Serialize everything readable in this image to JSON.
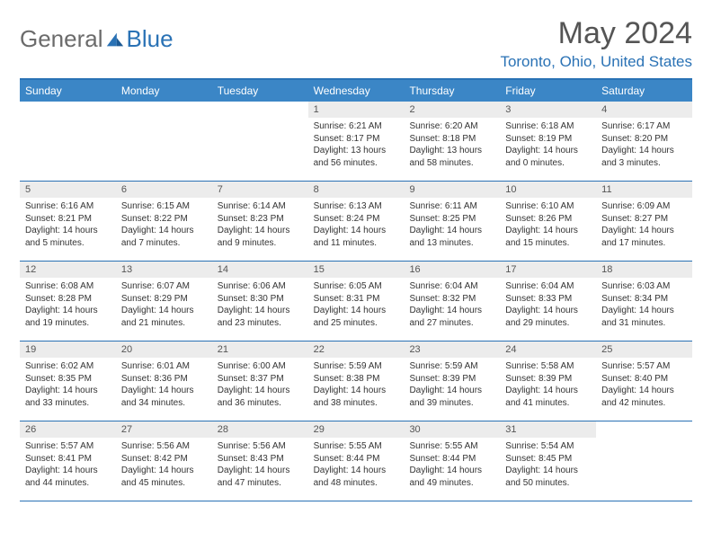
{
  "logo": {
    "general": "General",
    "blue": "Blue"
  },
  "title": "May 2024",
  "location": "Toronto, Ohio, United States",
  "colors": {
    "header_bg": "#3b86c6",
    "header_border": "#2a72b5",
    "daynum_bg": "#ececec",
    "text": "#333333",
    "logo_gray": "#6b6b6b",
    "logo_blue": "#2a72b5"
  },
  "daynames": [
    "Sunday",
    "Monday",
    "Tuesday",
    "Wednesday",
    "Thursday",
    "Friday",
    "Saturday"
  ],
  "weeks": [
    [
      {
        "n": "",
        "sr": "",
        "ss": "",
        "dl": ""
      },
      {
        "n": "",
        "sr": "",
        "ss": "",
        "dl": ""
      },
      {
        "n": "",
        "sr": "",
        "ss": "",
        "dl": ""
      },
      {
        "n": "1",
        "sr": "Sunrise: 6:21 AM",
        "ss": "Sunset: 8:17 PM",
        "dl": "Daylight: 13 hours and 56 minutes."
      },
      {
        "n": "2",
        "sr": "Sunrise: 6:20 AM",
        "ss": "Sunset: 8:18 PM",
        "dl": "Daylight: 13 hours and 58 minutes."
      },
      {
        "n": "3",
        "sr": "Sunrise: 6:18 AM",
        "ss": "Sunset: 8:19 PM",
        "dl": "Daylight: 14 hours and 0 minutes."
      },
      {
        "n": "4",
        "sr": "Sunrise: 6:17 AM",
        "ss": "Sunset: 8:20 PM",
        "dl": "Daylight: 14 hours and 3 minutes."
      }
    ],
    [
      {
        "n": "5",
        "sr": "Sunrise: 6:16 AM",
        "ss": "Sunset: 8:21 PM",
        "dl": "Daylight: 14 hours and 5 minutes."
      },
      {
        "n": "6",
        "sr": "Sunrise: 6:15 AM",
        "ss": "Sunset: 8:22 PM",
        "dl": "Daylight: 14 hours and 7 minutes."
      },
      {
        "n": "7",
        "sr": "Sunrise: 6:14 AM",
        "ss": "Sunset: 8:23 PM",
        "dl": "Daylight: 14 hours and 9 minutes."
      },
      {
        "n": "8",
        "sr": "Sunrise: 6:13 AM",
        "ss": "Sunset: 8:24 PM",
        "dl": "Daylight: 14 hours and 11 minutes."
      },
      {
        "n": "9",
        "sr": "Sunrise: 6:11 AM",
        "ss": "Sunset: 8:25 PM",
        "dl": "Daylight: 14 hours and 13 minutes."
      },
      {
        "n": "10",
        "sr": "Sunrise: 6:10 AM",
        "ss": "Sunset: 8:26 PM",
        "dl": "Daylight: 14 hours and 15 minutes."
      },
      {
        "n": "11",
        "sr": "Sunrise: 6:09 AM",
        "ss": "Sunset: 8:27 PM",
        "dl": "Daylight: 14 hours and 17 minutes."
      }
    ],
    [
      {
        "n": "12",
        "sr": "Sunrise: 6:08 AM",
        "ss": "Sunset: 8:28 PM",
        "dl": "Daylight: 14 hours and 19 minutes."
      },
      {
        "n": "13",
        "sr": "Sunrise: 6:07 AM",
        "ss": "Sunset: 8:29 PM",
        "dl": "Daylight: 14 hours and 21 minutes."
      },
      {
        "n": "14",
        "sr": "Sunrise: 6:06 AM",
        "ss": "Sunset: 8:30 PM",
        "dl": "Daylight: 14 hours and 23 minutes."
      },
      {
        "n": "15",
        "sr": "Sunrise: 6:05 AM",
        "ss": "Sunset: 8:31 PM",
        "dl": "Daylight: 14 hours and 25 minutes."
      },
      {
        "n": "16",
        "sr": "Sunrise: 6:04 AM",
        "ss": "Sunset: 8:32 PM",
        "dl": "Daylight: 14 hours and 27 minutes."
      },
      {
        "n": "17",
        "sr": "Sunrise: 6:04 AM",
        "ss": "Sunset: 8:33 PM",
        "dl": "Daylight: 14 hours and 29 minutes."
      },
      {
        "n": "18",
        "sr": "Sunrise: 6:03 AM",
        "ss": "Sunset: 8:34 PM",
        "dl": "Daylight: 14 hours and 31 minutes."
      }
    ],
    [
      {
        "n": "19",
        "sr": "Sunrise: 6:02 AM",
        "ss": "Sunset: 8:35 PM",
        "dl": "Daylight: 14 hours and 33 minutes."
      },
      {
        "n": "20",
        "sr": "Sunrise: 6:01 AM",
        "ss": "Sunset: 8:36 PM",
        "dl": "Daylight: 14 hours and 34 minutes."
      },
      {
        "n": "21",
        "sr": "Sunrise: 6:00 AM",
        "ss": "Sunset: 8:37 PM",
        "dl": "Daylight: 14 hours and 36 minutes."
      },
      {
        "n": "22",
        "sr": "Sunrise: 5:59 AM",
        "ss": "Sunset: 8:38 PM",
        "dl": "Daylight: 14 hours and 38 minutes."
      },
      {
        "n": "23",
        "sr": "Sunrise: 5:59 AM",
        "ss": "Sunset: 8:39 PM",
        "dl": "Daylight: 14 hours and 39 minutes."
      },
      {
        "n": "24",
        "sr": "Sunrise: 5:58 AM",
        "ss": "Sunset: 8:39 PM",
        "dl": "Daylight: 14 hours and 41 minutes."
      },
      {
        "n": "25",
        "sr": "Sunrise: 5:57 AM",
        "ss": "Sunset: 8:40 PM",
        "dl": "Daylight: 14 hours and 42 minutes."
      }
    ],
    [
      {
        "n": "26",
        "sr": "Sunrise: 5:57 AM",
        "ss": "Sunset: 8:41 PM",
        "dl": "Daylight: 14 hours and 44 minutes."
      },
      {
        "n": "27",
        "sr": "Sunrise: 5:56 AM",
        "ss": "Sunset: 8:42 PM",
        "dl": "Daylight: 14 hours and 45 minutes."
      },
      {
        "n": "28",
        "sr": "Sunrise: 5:56 AM",
        "ss": "Sunset: 8:43 PM",
        "dl": "Daylight: 14 hours and 47 minutes."
      },
      {
        "n": "29",
        "sr": "Sunrise: 5:55 AM",
        "ss": "Sunset: 8:44 PM",
        "dl": "Daylight: 14 hours and 48 minutes."
      },
      {
        "n": "30",
        "sr": "Sunrise: 5:55 AM",
        "ss": "Sunset: 8:44 PM",
        "dl": "Daylight: 14 hours and 49 minutes."
      },
      {
        "n": "31",
        "sr": "Sunrise: 5:54 AM",
        "ss": "Sunset: 8:45 PM",
        "dl": "Daylight: 14 hours and 50 minutes."
      },
      {
        "n": "",
        "sr": "",
        "ss": "",
        "dl": ""
      }
    ]
  ]
}
